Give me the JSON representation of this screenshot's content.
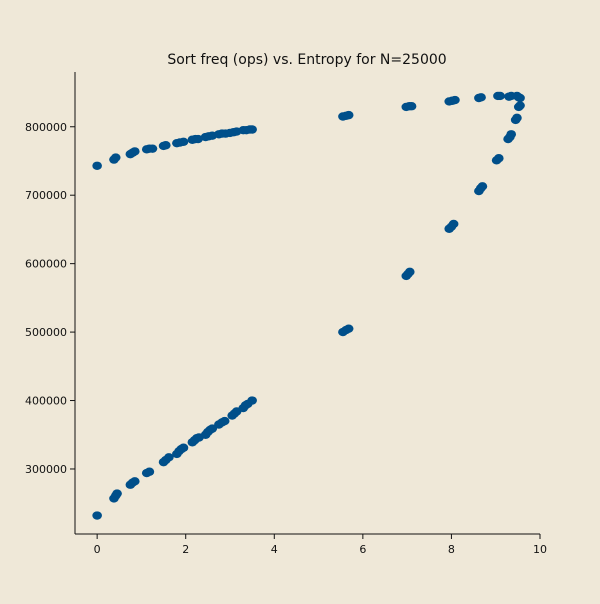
{
  "chart_data": {
    "type": "scatter",
    "title": "Sort freq (ops) vs. Entropy for N=25000",
    "xlabel": "",
    "ylabel": "",
    "xlim": [
      -0.5,
      10
    ],
    "ylim": [
      205000,
      880000
    ],
    "xticks": [
      0,
      2,
      4,
      6,
      8,
      10
    ],
    "yticks": [
      300000,
      400000,
      500000,
      600000,
      700000,
      800000
    ],
    "grid": false,
    "marker_color": "#004f8a",
    "background_color": "#efe8d8",
    "series": [
      {
        "points": [
          [
            0.0,
            232000
          ],
          [
            0.0,
            743000
          ],
          [
            0.38,
            257000
          ],
          [
            0.42,
            261000
          ],
          [
            0.45,
            264000
          ],
          [
            0.38,
            752000
          ],
          [
            0.42,
            755000
          ],
          [
            0.75,
            277000
          ],
          [
            0.8,
            280000
          ],
          [
            0.85,
            282000
          ],
          [
            0.75,
            760000
          ],
          [
            0.8,
            762000
          ],
          [
            0.85,
            764000
          ],
          [
            1.12,
            294000
          ],
          [
            1.18,
            296000
          ],
          [
            1.12,
            767000
          ],
          [
            1.18,
            768000
          ],
          [
            1.25,
            768000
          ],
          [
            1.5,
            310000
          ],
          [
            1.55,
            313000
          ],
          [
            1.62,
            317000
          ],
          [
            1.5,
            772000
          ],
          [
            1.55,
            773000
          ],
          [
            1.8,
            322000
          ],
          [
            1.85,
            326000
          ],
          [
            1.9,
            329000
          ],
          [
            1.95,
            331000
          ],
          [
            1.8,
            776000
          ],
          [
            1.87,
            777000
          ],
          [
            1.95,
            778000
          ],
          [
            2.15,
            339000
          ],
          [
            2.2,
            342000
          ],
          [
            2.25,
            345000
          ],
          [
            2.3,
            346000
          ],
          [
            2.15,
            781000
          ],
          [
            2.22,
            782000
          ],
          [
            2.28,
            782000
          ],
          [
            2.45,
            350000
          ],
          [
            2.5,
            354000
          ],
          [
            2.55,
            357000
          ],
          [
            2.6,
            359000
          ],
          [
            2.45,
            785000
          ],
          [
            2.52,
            786000
          ],
          [
            2.6,
            787000
          ],
          [
            2.75,
            365000
          ],
          [
            2.82,
            368000
          ],
          [
            2.88,
            370000
          ],
          [
            2.75,
            789000
          ],
          [
            2.82,
            790000
          ],
          [
            2.9,
            790000
          ],
          [
            3.05,
            378000
          ],
          [
            3.1,
            381000
          ],
          [
            3.15,
            384000
          ],
          [
            3.0,
            791000
          ],
          [
            3.08,
            792000
          ],
          [
            3.15,
            793000
          ],
          [
            3.3,
            389000
          ],
          [
            3.35,
            393000
          ],
          [
            3.4,
            395000
          ],
          [
            3.5,
            400000
          ],
          [
            3.3,
            795000
          ],
          [
            3.37,
            795000
          ],
          [
            3.45,
            796000
          ],
          [
            3.5,
            796000
          ],
          [
            5.55,
            500000
          ],
          [
            5.62,
            503000
          ],
          [
            5.68,
            505000
          ],
          [
            5.55,
            815000
          ],
          [
            5.62,
            816000
          ],
          [
            5.68,
            817000
          ],
          [
            6.98,
            582000
          ],
          [
            7.02,
            585000
          ],
          [
            7.06,
            588000
          ],
          [
            6.98,
            829000
          ],
          [
            7.05,
            830000
          ],
          [
            7.1,
            830000
          ],
          [
            7.95,
            651000
          ],
          [
            8.0,
            654000
          ],
          [
            8.05,
            658000
          ],
          [
            7.95,
            837000
          ],
          [
            8.02,
            838000
          ],
          [
            8.08,
            839000
          ],
          [
            8.62,
            706000
          ],
          [
            8.66,
            710000
          ],
          [
            8.7,
            713000
          ],
          [
            8.62,
            842000
          ],
          [
            8.67,
            843000
          ],
          [
            9.02,
            751000
          ],
          [
            9.07,
            754000
          ],
          [
            9.05,
            845000
          ],
          [
            9.1,
            845000
          ],
          [
            9.28,
            782000
          ],
          [
            9.32,
            785000
          ],
          [
            9.35,
            789000
          ],
          [
            9.3,
            844000
          ],
          [
            9.35,
            845000
          ],
          [
            9.45,
            810000
          ],
          [
            9.48,
            813000
          ],
          [
            9.48,
            845000
          ],
          [
            9.52,
            843000
          ],
          [
            9.55,
            842000
          ],
          [
            9.52,
            829000
          ],
          [
            9.55,
            831000
          ]
        ]
      }
    ]
  }
}
